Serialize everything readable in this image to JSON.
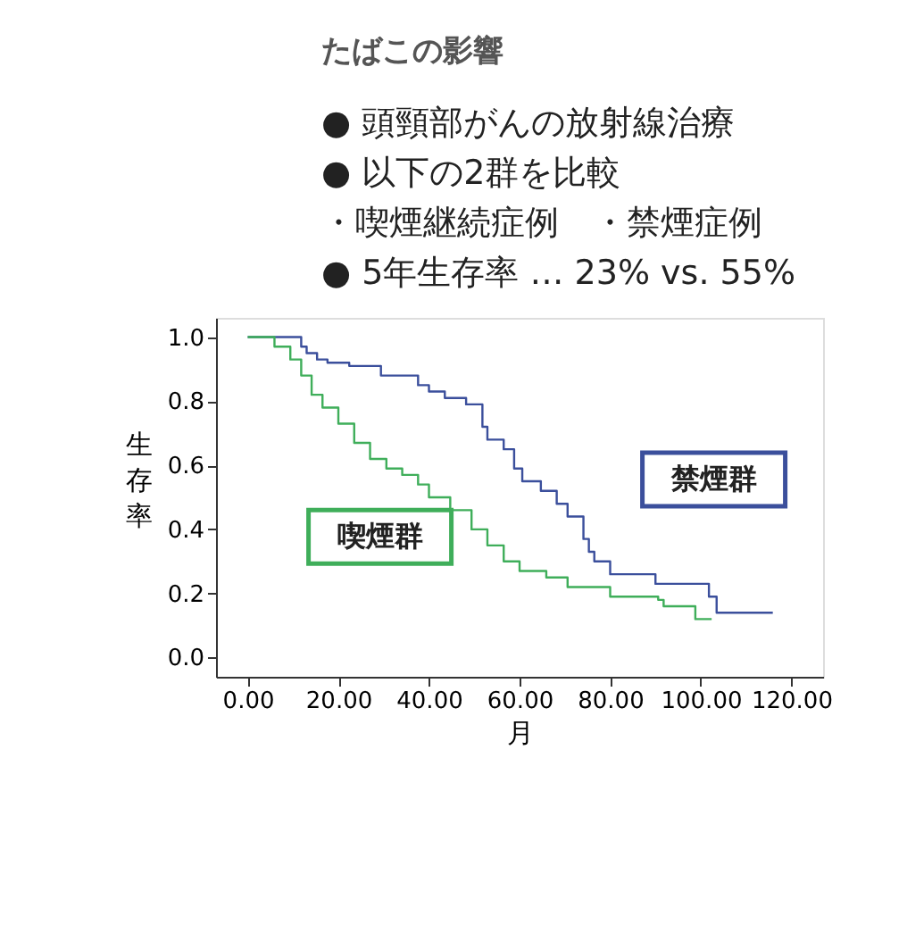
{
  "chart_data": {
    "type": "step",
    "title": "たばこの影響",
    "annotations": [
      "● 頭頸部がんの放射線治療",
      "● 以下の2群を比較",
      "　・喫煙継続症例　・禁煙症例",
      "● 5年生存率 … 23% vs. 55%"
    ],
    "xlabel": "月",
    "ylabel": "生存率",
    "xlim": [
      -7,
      127
    ],
    "ylim": [
      -0.06,
      1.06
    ],
    "xticks": [
      {
        "value": 0,
        "label": "0.00"
      },
      {
        "value": 20,
        "label": "20.00"
      },
      {
        "value": 40,
        "label": "40.00"
      },
      {
        "value": 60,
        "label": "60.00"
      },
      {
        "value": 80,
        "label": "80.00"
      },
      {
        "value": 100,
        "label": "100.00"
      },
      {
        "value": 120,
        "label": "120.00"
      }
    ],
    "yticks": [
      {
        "value": 0,
        "label": "0.0"
      },
      {
        "value": 0.2,
        "label": "0.2"
      },
      {
        "value": 0.4,
        "label": "0.4"
      },
      {
        "value": 0.6,
        "label": "0.6"
      },
      {
        "value": 0.8,
        "label": "0.8"
      },
      {
        "value": 1,
        "label": "1.0"
      }
    ],
    "grid": false,
    "legend": false,
    "series": [
      {
        "name": "禁煙群",
        "color": "#3b4f9c",
        "x": [
          0,
          11.8,
          13,
          15.3,
          17.6,
          22.4,
          29.4,
          37.6,
          40,
          43.5,
          48.2,
          51.8,
          52.9,
          56.5,
          58.8,
          60.6,
          64.7,
          68.2,
          70.6,
          74.1,
          75.3,
          76.5,
          80,
          90,
          101.8,
          103.5,
          115.9
        ],
        "values": [
          1,
          0.97,
          0.95,
          0.93,
          0.92,
          0.91,
          0.88,
          0.85,
          0.83,
          0.81,
          0.79,
          0.72,
          0.68,
          0.65,
          0.59,
          0.55,
          0.52,
          0.48,
          0.44,
          0.37,
          0.33,
          0.3,
          0.26,
          0.23,
          0.19,
          0.14,
          0.14
        ]
      },
      {
        "name": "喫煙群",
        "color": "#3fae5a",
        "x": [
          0,
          5.9,
          9.4,
          11.8,
          14.1,
          16.5,
          20,
          23.5,
          27,
          30.6,
          34.1,
          37.6,
          40,
          44.7,
          49.4,
          52.9,
          56.5,
          60,
          65.9,
          70.6,
          80,
          90.6,
          91.8,
          98.8,
          102.4
        ],
        "values": [
          1,
          0.97,
          0.93,
          0.88,
          0.82,
          0.78,
          0.73,
          0.67,
          0.62,
          0.59,
          0.57,
          0.54,
          0.5,
          0.46,
          0.4,
          0.35,
          0.3,
          0.27,
          0.25,
          0.22,
          0.19,
          0.18,
          0.16,
          0.12,
          0.12
        ]
      }
    ]
  }
}
